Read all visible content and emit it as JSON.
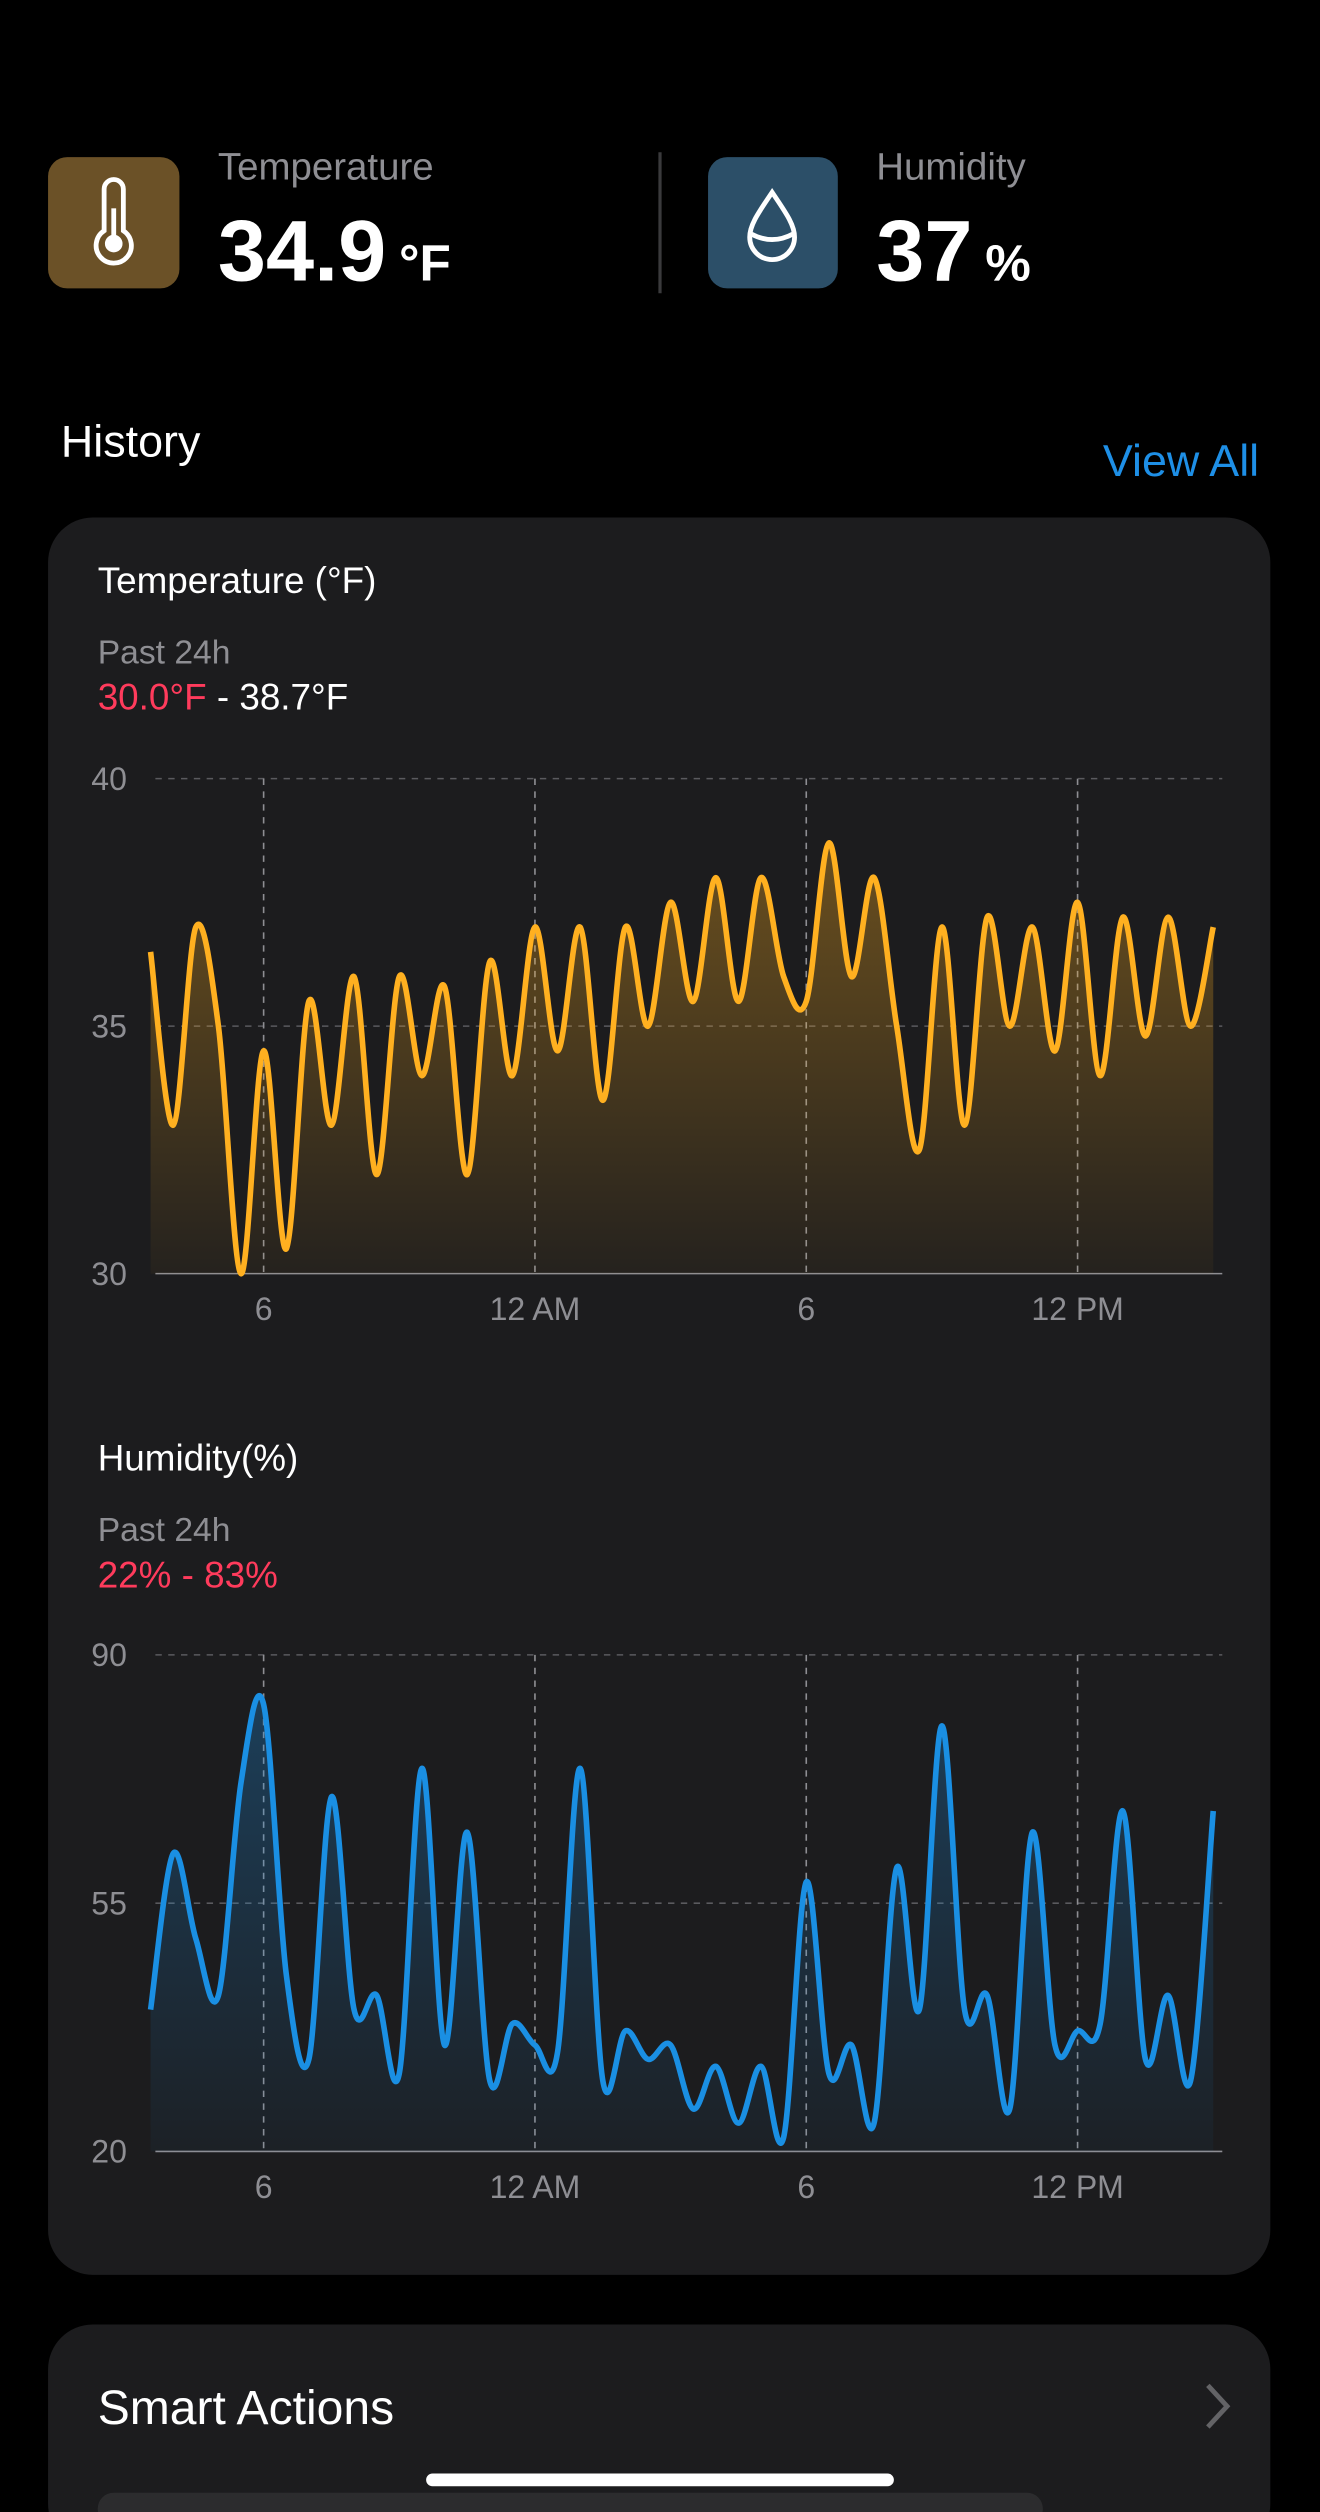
{
  "readings": [
    {
      "label": "Temperature",
      "value": "34.9",
      "unit": "°F"
    },
    {
      "label": "Humidity",
      "value": "37",
      "unit": "%"
    }
  ],
  "history": {
    "title": "History",
    "link": "View All"
  },
  "chart_data": [
    {
      "type": "line",
      "title": "Temperature (°F)",
      "subtitle": "Past 24h",
      "range_text": [
        {
          "text": "30.0°F",
          "color": "#ff3b5c"
        },
        {
          "text": " - 38.7°F",
          "color": "#ffffff"
        }
      ],
      "x": [
        15.5,
        16,
        16.5,
        17,
        17.5,
        18,
        18.5,
        19,
        19.5,
        20,
        20.5,
        21,
        21.5,
        22,
        22.5,
        23,
        23.5,
        24,
        24.5,
        25,
        25.5,
        26,
        26.5,
        27,
        27.5,
        28,
        28.5,
        29,
        29.5,
        30,
        30.5,
        31,
        31.5,
        32,
        32.5,
        33,
        33.5,
        34,
        34.5,
        35,
        35.5,
        36,
        36.5,
        37,
        37.5,
        38,
        38.5,
        39
      ],
      "series": [
        {
          "color": "#ffb020",
          "values": [
            36.5,
            33,
            37,
            35,
            30.0,
            34.5,
            30.5,
            35.5,
            33,
            36,
            32,
            36,
            34,
            35.8,
            32,
            36.3,
            34,
            37,
            34.5,
            37,
            33.5,
            37,
            35,
            37.5,
            35.5,
            38,
            35.5,
            38,
            36,
            35.5,
            38.7,
            36,
            38,
            35,
            32.5,
            37,
            33,
            37.2,
            35,
            37,
            34.5,
            37.5,
            34,
            37.2,
            34.8,
            37.2,
            35,
            37
          ]
        }
      ],
      "xlim": [
        15.5,
        39.2
      ],
      "xticks": [
        {
          "value": 18,
          "label": "6"
        },
        {
          "value": 24,
          "label": "12 AM"
        },
        {
          "value": 30,
          "label": "6"
        },
        {
          "value": 36,
          "label": "12 PM"
        }
      ],
      "ylim": [
        30,
        40
      ],
      "yticks": [
        30,
        35,
        40
      ],
      "grid": true
    },
    {
      "type": "line",
      "title": "Humidity(%)",
      "subtitle": "Past 24h",
      "range_text": [
        {
          "text": "22% - 83%",
          "color": "#ff3b5c"
        }
      ],
      "x": [
        15.5,
        16,
        16.5,
        17,
        17.5,
        18,
        18.5,
        19,
        19.5,
        20,
        20.5,
        21,
        21.5,
        22,
        22.5,
        23,
        23.5,
        24,
        24.5,
        25,
        25.5,
        26,
        26.5,
        27,
        27.5,
        28,
        28.5,
        29,
        29.5,
        30,
        30.5,
        31,
        31.5,
        32,
        32.5,
        33,
        33.5,
        34,
        34.5,
        35,
        35.5,
        36,
        36.5,
        37,
        37.5,
        38,
        38.5,
        39
      ],
      "series": [
        {
          "color": "#1a8fe3",
          "values": [
            40,
            62,
            50,
            42,
            72,
            83,
            45,
            33,
            70,
            40,
            42,
            31,
            74,
            35,
            65,
            30,
            38,
            35,
            34,
            74,
            30,
            37,
            33,
            35,
            26,
            32,
            24,
            32,
            22,
            58,
            31,
            35,
            24,
            60,
            40,
            80,
            40,
            42,
            26,
            65,
            35,
            37,
            38,
            68,
            33,
            42,
            30,
            68
          ]
        }
      ],
      "xlim": [
        15.5,
        39.2
      ],
      "xticks": [
        {
          "value": 18,
          "label": "6"
        },
        {
          "value": 24,
          "label": "12 AM"
        },
        {
          "value": 30,
          "label": "6"
        },
        {
          "value": 36,
          "label": "12 PM"
        }
      ],
      "ylim": [
        20,
        90
      ],
      "yticks": [
        20,
        55,
        90
      ],
      "grid": true
    }
  ],
  "smart_actions": {
    "title": "Smart Actions"
  }
}
